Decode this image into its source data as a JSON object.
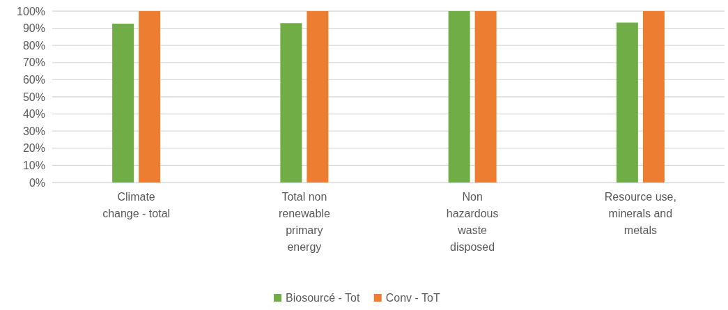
{
  "chart_data": {
    "type": "bar",
    "categories": [
      "Climate change - total",
      "Total non renewable primary energy",
      "Non hazardous waste disposed",
      "Resource use, minerals and metals"
    ],
    "series": [
      {
        "name": "Biosourcé - Tot",
        "color": "#70ad47",
        "values": [
          92.7,
          93,
          100,
          93.3
        ]
      },
      {
        "name": "Conv - ToT",
        "color": "#ed7d31",
        "values": [
          100,
          100,
          100,
          100
        ]
      }
    ],
    "ylim": [
      0,
      100
    ],
    "yticks": [
      {
        "value": 0,
        "label": "0%"
      },
      {
        "value": 10,
        "label": "10%"
      },
      {
        "value": 20,
        "label": "20%"
      },
      {
        "value": 30,
        "label": "30%"
      },
      {
        "value": 40,
        "label": "40%"
      },
      {
        "value": 50,
        "label": "50%"
      },
      {
        "value": 60,
        "label": "60%"
      },
      {
        "value": 70,
        "label": "70%"
      },
      {
        "value": 80,
        "label": "80%"
      },
      {
        "value": 90,
        "label": "90%"
      },
      {
        "value": 100,
        "label": "100%"
      }
    ],
    "grid": "y",
    "legend": "bottom"
  }
}
